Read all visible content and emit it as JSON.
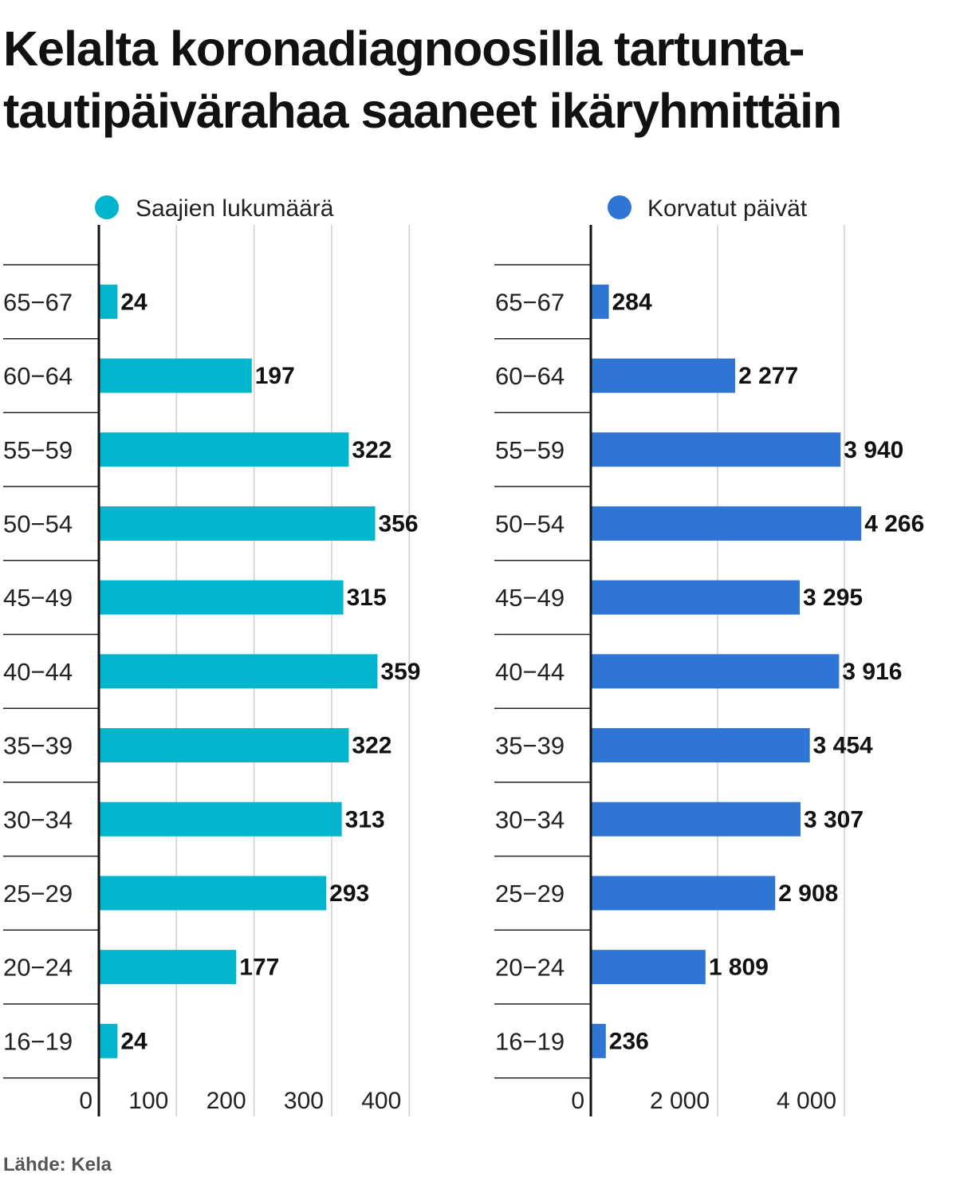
{
  "title_line1": "Kelalta koronadiagnoosilla tartunta-",
  "title_line2": "tautipäivärahaa saaneet ikäryhmittäin",
  "source": "Lähde: Kela",
  "chart_data": [
    {
      "type": "bar",
      "orientation": "horizontal",
      "series_name": "Saajien lukumäärä",
      "color": "#00b5cc",
      "categories": [
        "65−67",
        "60−64",
        "55−59",
        "50−54",
        "45−49",
        "40−44",
        "35−39",
        "30−34",
        "25−29",
        "20−24",
        "16−19"
      ],
      "values": [
        24,
        197,
        322,
        356,
        315,
        359,
        322,
        313,
        293,
        177,
        24
      ],
      "value_labels": [
        "24",
        "197",
        "322",
        "356",
        "315",
        "359",
        "322",
        "313",
        "293",
        "177",
        "24"
      ],
      "xlim": [
        0,
        400
      ],
      "ticks": [
        0,
        100,
        200,
        300,
        400
      ],
      "tick_labels": [
        "0",
        "100",
        "200",
        "300",
        "400"
      ],
      "grid": true,
      "legend": "top"
    },
    {
      "type": "bar",
      "orientation": "horizontal",
      "series_name": "Korvatut päivät",
      "color": "#2e75d4",
      "categories": [
        "65−67",
        "60−64",
        "55−59",
        "50−54",
        "45−49",
        "40−44",
        "35−39",
        "30−34",
        "25−29",
        "20−24",
        "16−19"
      ],
      "values": [
        284,
        2277,
        3940,
        4266,
        3295,
        3916,
        3454,
        3307,
        2908,
        1809,
        236
      ],
      "value_labels": [
        "284",
        "2 277",
        "3 940",
        "4 266",
        "3 295",
        "3 916",
        "3 454",
        "3 307",
        "2 908",
        "1 809",
        "236"
      ],
      "xlim": [
        0,
        4000
      ],
      "ticks": [
        0,
        2000,
        4000
      ],
      "tick_labels": [
        "0",
        "2 000",
        "4 000"
      ],
      "grid": true,
      "legend": "top"
    }
  ]
}
